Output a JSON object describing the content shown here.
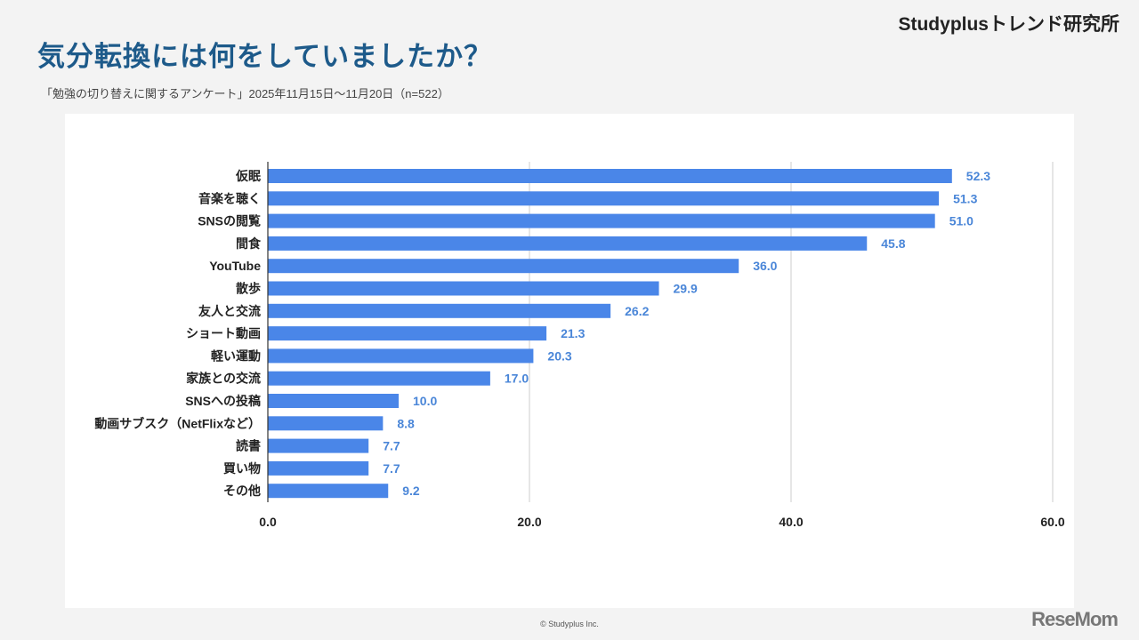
{
  "header": {
    "title": "気分転換には何をしていましたか？",
    "subtitle": "「勉強の切り替えに関するアンケート」2025年11月15日〜11月20日（n=522）",
    "brand": "Studyplusトレンド研究所"
  },
  "footer": {
    "copyright": "© Studyplus Inc.",
    "logo": "ReseMom"
  },
  "colors": {
    "bar": "#4a86e8",
    "value_label": "#4a86d8",
    "title": "#1d5a8a"
  },
  "chart_data": {
    "type": "bar",
    "orientation": "horizontal",
    "categories": [
      "仮眠",
      "音楽を聴く",
      "SNSの閲覧",
      "間食",
      "YouTube",
      "散歩",
      "友人と交流",
      "ショート動画",
      "軽い運動",
      "家族との交流",
      "SNSへの投稿",
      "動画サブスク（NetFlixなど）",
      "読書",
      "買い物",
      "その他"
    ],
    "values": [
      52.3,
      51.3,
      51.0,
      45.8,
      36.0,
      29.9,
      26.2,
      21.3,
      20.3,
      17.0,
      10.0,
      8.8,
      7.7,
      7.7,
      9.2
    ],
    "value_labels": [
      "52.3",
      "51.3",
      "51.0",
      "45.8",
      "36.0",
      "29.9",
      "26.2",
      "21.3",
      "20.3",
      "17.0",
      "10.0",
      "8.8",
      "7.7",
      "7.7",
      "9.2"
    ],
    "xlim": [
      0,
      60
    ],
    "xticks": [
      0,
      20,
      40,
      60
    ],
    "xtick_labels": [
      "0.0",
      "20.0",
      "40.0",
      "60.0"
    ],
    "grid": true,
    "legend": "none"
  }
}
